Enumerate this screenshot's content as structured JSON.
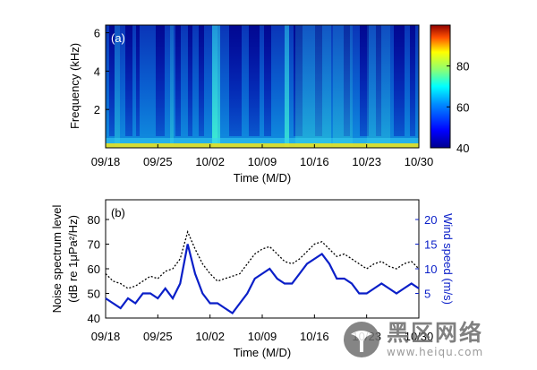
{
  "chart_data": [
    {
      "panel": "(a)",
      "type": "heatmap",
      "xlabel": "Time (M/D)",
      "ylabel": "Frequency (kHz)",
      "x_ticks": [
        "09/18",
        "09/25",
        "10/02",
        "10/09",
        "10/16",
        "10/23",
        "10/30"
      ],
      "y_ticks": [
        2,
        4,
        6
      ],
      "ylim": [
        0,
        6.4
      ],
      "colorbar": {
        "ticks": [
          40,
          60,
          80
        ],
        "range": [
          40,
          100
        ]
      }
    },
    {
      "panel": "(b)",
      "type": "line",
      "xlabel": "Time (M/D)",
      "ylabel_left": [
        "Noise spectrum level",
        "(dB re 1μPa²/Hz)"
      ],
      "ylabel_right": "Wind speed (m/s)",
      "x_ticks": [
        "09/18",
        "09/25",
        "10/02",
        "10/09",
        "10/16",
        "10/23",
        "10/30"
      ],
      "y_ticks_left": [
        40,
        50,
        60,
        70,
        80
      ],
      "y_ticks_right": [
        5,
        10,
        15,
        20
      ],
      "ylim_left": [
        40,
        88
      ],
      "ylim_right": [
        0,
        24
      ],
      "series": [
        {
          "style": "dotted",
          "color": "#000000",
          "x": [
            0,
            1,
            2,
            3,
            4,
            5,
            6,
            7,
            8,
            9,
            10,
            11,
            12,
            13,
            14,
            15,
            16,
            17,
            18,
            19,
            20,
            21,
            22,
            23,
            24,
            25,
            26,
            27,
            28,
            29,
            30,
            31,
            32,
            33,
            34,
            35,
            36,
            37,
            38,
            39,
            40,
            41,
            42
          ],
          "values": [
            58,
            55,
            54,
            52,
            53,
            55,
            57,
            56,
            59,
            60,
            64,
            75,
            68,
            62,
            58,
            55,
            56,
            57,
            58,
            62,
            66,
            68,
            69,
            66,
            63,
            62,
            64,
            67,
            70,
            71,
            68,
            65,
            66,
            64,
            62,
            60,
            62,
            63,
            61,
            60,
            62,
            63,
            60
          ]
        },
        {
          "style": "solid",
          "color": "#0a1fc8",
          "x": [
            0,
            1,
            2,
            3,
            4,
            5,
            6,
            7,
            8,
            9,
            10,
            11,
            12,
            13,
            14,
            15,
            16,
            17,
            18,
            19,
            20,
            21,
            22,
            23,
            24,
            25,
            26,
            27,
            28,
            29,
            30,
            31,
            32,
            33,
            34,
            35,
            36,
            37,
            38,
            39,
            40,
            41,
            42
          ],
          "values": [
            4,
            3,
            2,
            4,
            3,
            5,
            5,
            4,
            6,
            4,
            7,
            15,
            9,
            5,
            3,
            3,
            2,
            1,
            3,
            5,
            8,
            9,
            10,
            8,
            7,
            7,
            9,
            11,
            12,
            13,
            11,
            8,
            8,
            7,
            5,
            5,
            6,
            7,
            6,
            5,
            6,
            7,
            6
          ]
        }
      ]
    }
  ],
  "watermark": {
    "title": "黑区网络",
    "url": "www.heiqu.com"
  }
}
